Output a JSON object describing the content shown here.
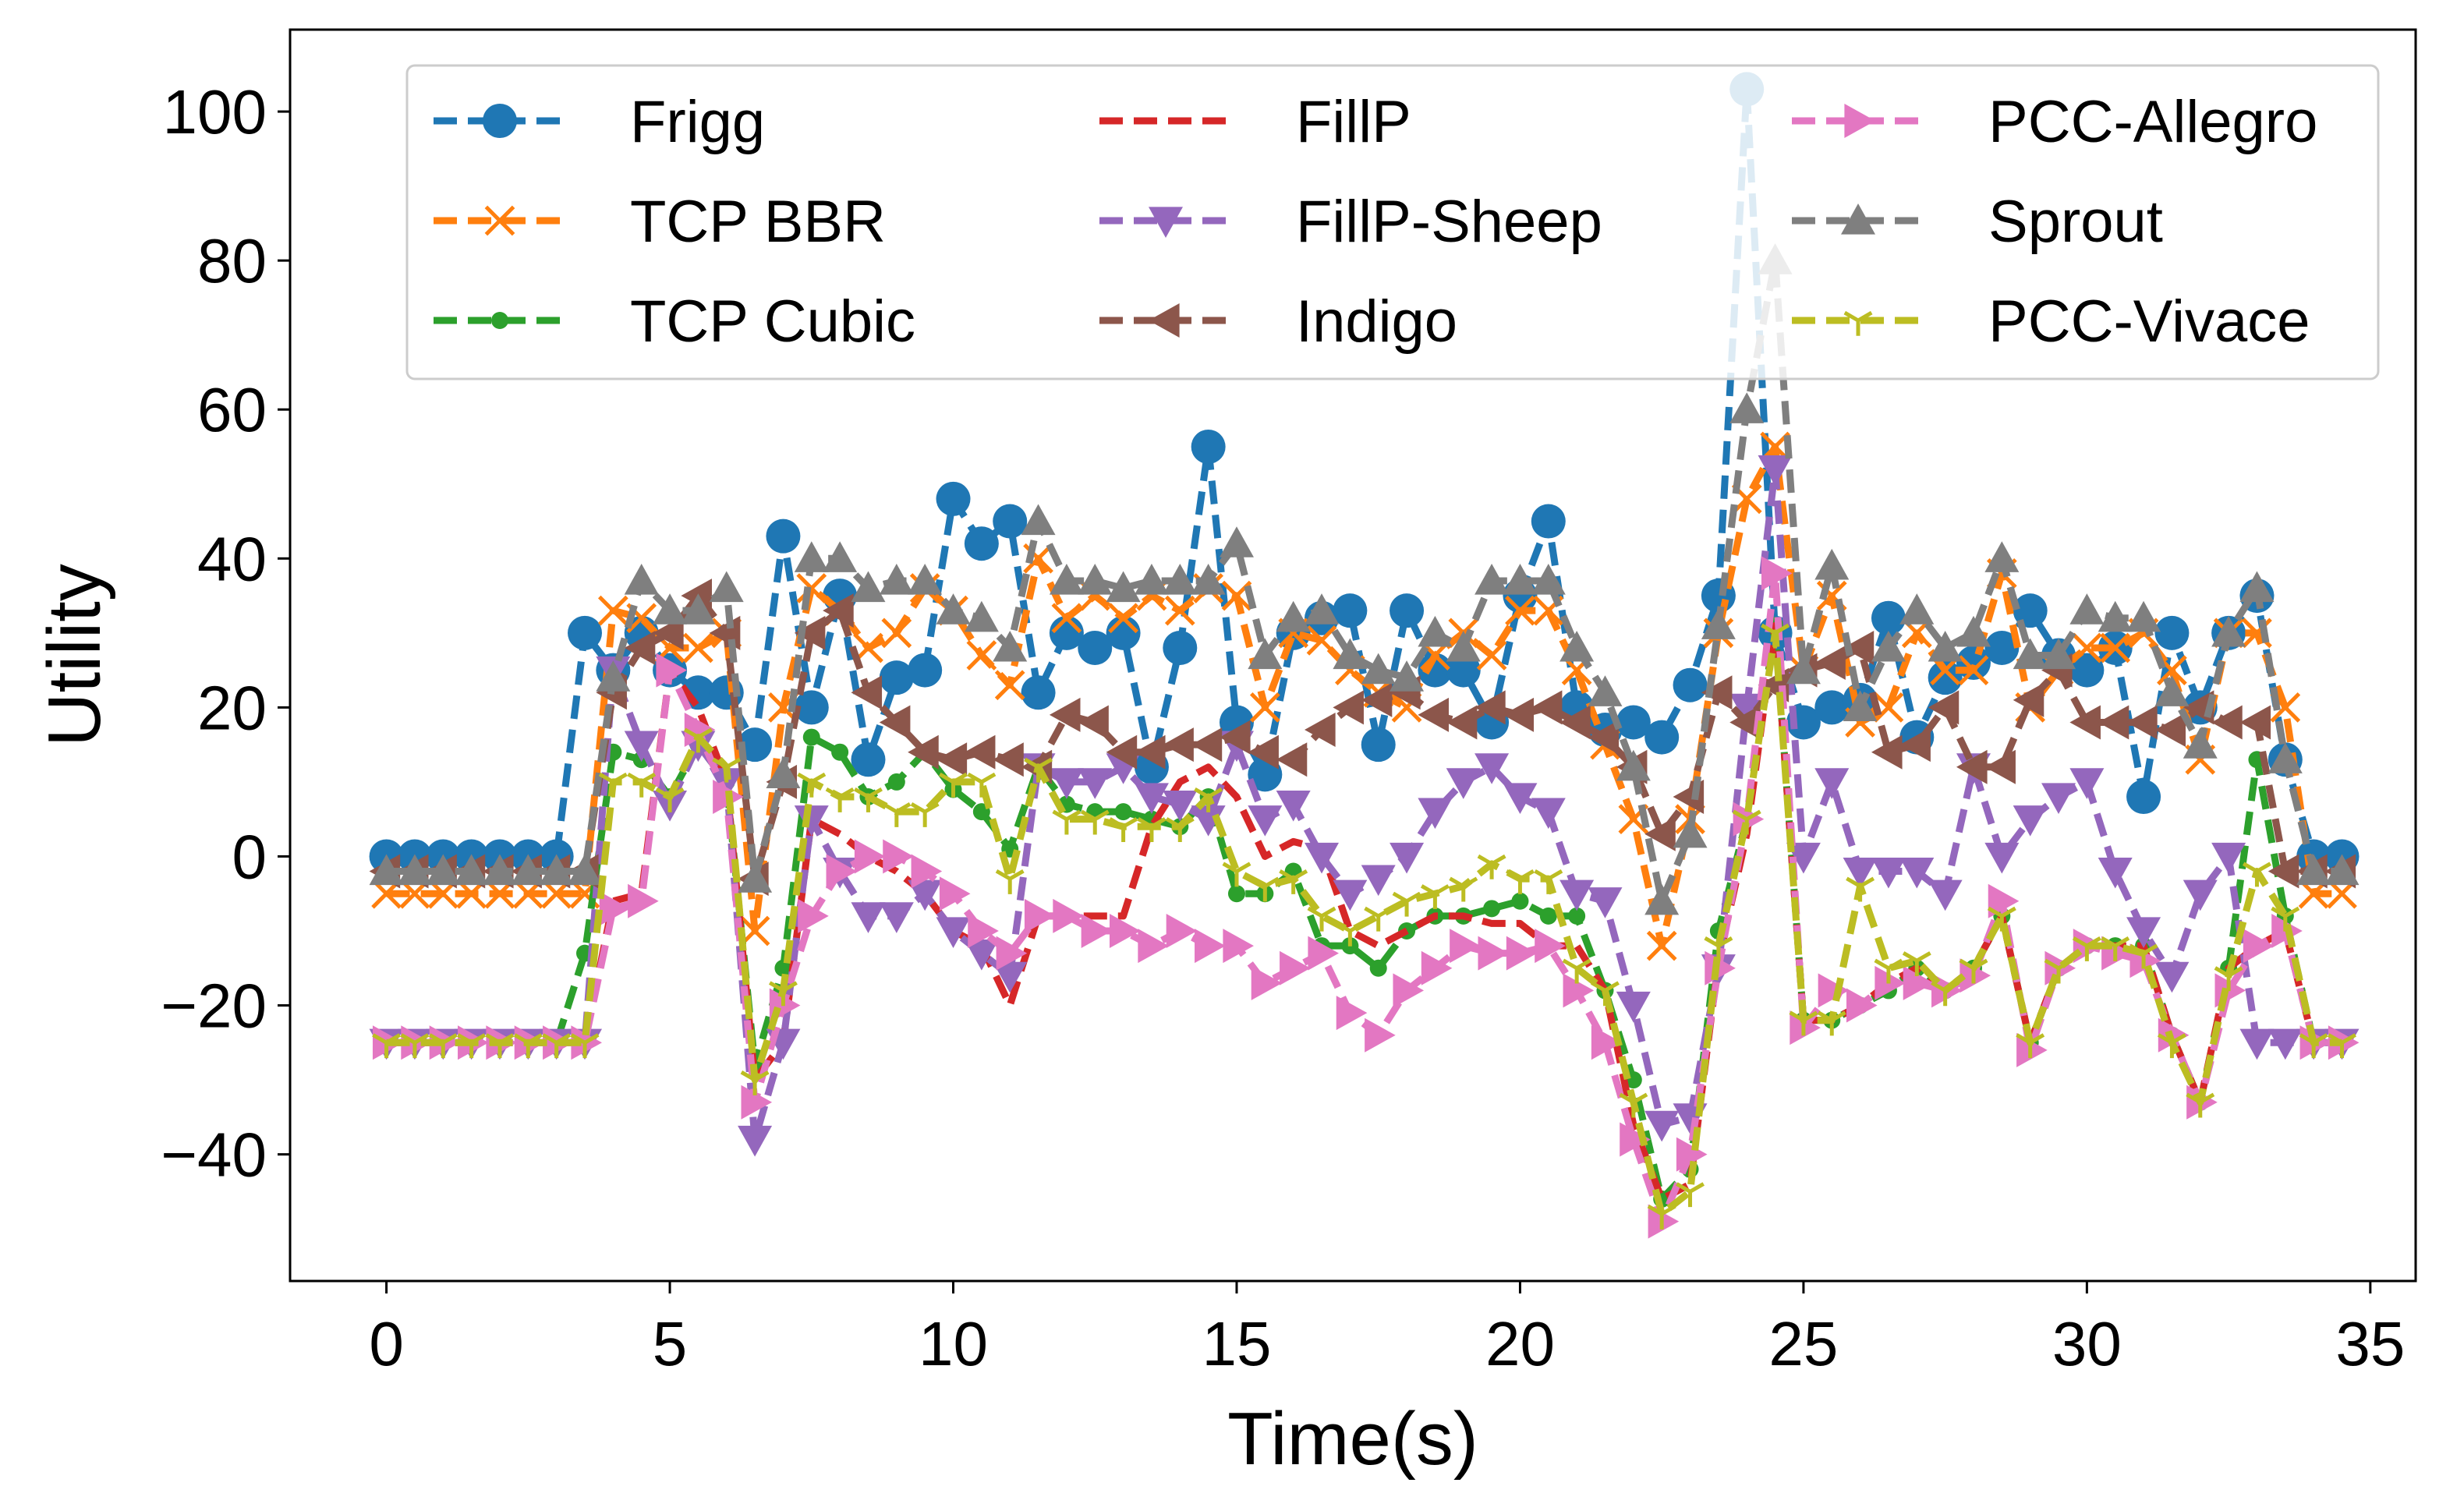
{
  "chart_data": {
    "type": "line",
    "title": "",
    "xlabel": "Time(s)",
    "ylabel": "Utility",
    "xlim": [
      -1.7,
      35.8
    ],
    "ylim": [
      -57,
      111
    ],
    "xticks": [
      0,
      5,
      10,
      15,
      20,
      25,
      30,
      35
    ],
    "yticks": [
      -40,
      -20,
      0,
      20,
      40,
      60,
      80,
      100
    ],
    "ytick_labels": [
      "−40",
      "−20",
      "0",
      "20",
      "40",
      "60",
      "80",
      "100"
    ],
    "grid": false,
    "legend_position": "top",
    "legend_columns": 3,
    "x": [
      0,
      0.5,
      1,
      1.5,
      2,
      2.5,
      3,
      3.5,
      4,
      4.5,
      5,
      5.5,
      6,
      6.5,
      7,
      7.5,
      8,
      8.5,
      9,
      9.5,
      10,
      10.5,
      11,
      11.5,
      12,
      12.5,
      13,
      13.5,
      14,
      14.5,
      15,
      15.5,
      16,
      16.5,
      17,
      17.5,
      18,
      18.5,
      19,
      19.5,
      20,
      20.5,
      21,
      21.5,
      22,
      22.5,
      23,
      23.5,
      24,
      24.5,
      25,
      25.5,
      26,
      26.5,
      27,
      27.5,
      28,
      28.5,
      29,
      29.5,
      30,
      30.5,
      31,
      31.5,
      32,
      32.5,
      33,
      33.5,
      34,
      34.5
    ],
    "series": [
      {
        "name": "Frigg",
        "color": "#1f77b4",
        "marker": "circle",
        "values": [
          0,
          0,
          0,
          0,
          0,
          0,
          0,
          30,
          25,
          30,
          25,
          22,
          22,
          15,
          43,
          20,
          35,
          13,
          24,
          25,
          48,
          42,
          45,
          22,
          30,
          28,
          30,
          12,
          28,
          55,
          18,
          11,
          30,
          32,
          33,
          15,
          33,
          25,
          25,
          18,
          35,
          45,
          20,
          17,
          18,
          16,
          23,
          35,
          103,
          30,
          18,
          20,
          21,
          32,
          16,
          24,
          26,
          28,
          33,
          27,
          25,
          28,
          8,
          30,
          20,
          30,
          35,
          13,
          0,
          0
        ]
      },
      {
        "name": "TCP BBR",
        "color": "#ff7f0e",
        "marker": "x",
        "values": [
          -5,
          -5,
          -5,
          -5,
          -5,
          -5,
          -5,
          -5,
          33,
          32,
          28,
          28,
          30,
          -10,
          20,
          36,
          33,
          28,
          30,
          36,
          33,
          27,
          23,
          40,
          32,
          35,
          32,
          35,
          33,
          36,
          35,
          20,
          30,
          29,
          25,
          22,
          20,
          27,
          30,
          27,
          33,
          33,
          25,
          15,
          5,
          -12,
          5,
          30,
          48,
          55,
          25,
          35,
          18,
          20,
          30,
          25,
          25,
          38,
          20,
          25,
          28,
          28,
          30,
          25,
          13,
          30,
          30,
          20,
          -5,
          -5
        ]
      },
      {
        "name": "TCP Cubic",
        "color": "#2ca02c",
        "marker": "point",
        "values": [
          -25,
          -25,
          -25,
          -25,
          -25,
          -25,
          -25,
          -13,
          14,
          13,
          8,
          15,
          10,
          -28,
          -15,
          16,
          14,
          8,
          10,
          14,
          9,
          6,
          1,
          12,
          7,
          6,
          6,
          5,
          4,
          8,
          -5,
          -5,
          -2,
          -12,
          -12,
          -15,
          -10,
          -8,
          -8,
          -7,
          -6,
          -8,
          -8,
          -18,
          -30,
          -46,
          -42,
          -10,
          5,
          31,
          -22,
          -22,
          -20,
          -18,
          -15,
          -18,
          -15,
          -8,
          -25,
          -15,
          -12,
          -12,
          -12,
          -24,
          -33,
          -15,
          13,
          -8,
          -25,
          -25
        ]
      },
      {
        "name": "FillP",
        "color": "#d62728",
        "marker": "none",
        "values": [
          -25,
          -25,
          -25,
          -25,
          -25,
          -25,
          -25,
          -25,
          -6,
          -5,
          25,
          20,
          10,
          -30,
          -25,
          5,
          3,
          0,
          -2,
          -5,
          -10,
          -12,
          -20,
          -8,
          -8,
          -8,
          -8,
          4,
          10,
          12,
          8,
          0,
          2,
          1,
          -10,
          -12,
          -10,
          -8,
          -8,
          -9,
          -9,
          -12,
          -12,
          -18,
          -36,
          -46,
          -44,
          -14,
          3,
          31,
          -22,
          -22,
          -20,
          -17,
          -15,
          -18,
          -15,
          -8,
          -25,
          -15,
          -12,
          -12,
          -12,
          -24,
          -33,
          -15,
          -12,
          -10,
          -25,
          -25
        ]
      },
      {
        "name": "FillP-Sheep",
        "color": "#9467bd",
        "marker": "triangle_down",
        "values": [
          -25,
          -25,
          -25,
          -25,
          -25,
          -25,
          -25,
          -25,
          25,
          15,
          7,
          15,
          10,
          -38,
          -25,
          5,
          -2,
          -8,
          -8,
          -5,
          -10,
          -13,
          -16,
          12,
          10,
          10,
          12,
          8,
          7,
          5,
          15,
          5,
          7,
          0,
          -5,
          -3,
          0,
          6,
          10,
          12,
          8,
          6,
          -5,
          -6,
          -20,
          -36,
          -35,
          -15,
          20,
          52,
          0,
          10,
          -2,
          -2,
          -2,
          -5,
          12,
          0,
          5,
          8,
          10,
          -2,
          -10,
          -16,
          -5,
          0,
          -25,
          -25,
          -25,
          -25
        ]
      },
      {
        "name": "Indigo",
        "color": "#8c564b",
        "marker": "triangle_left",
        "values": [
          -2,
          -2,
          -2,
          -2,
          -2,
          -2,
          -2,
          -2,
          22,
          28,
          30,
          35,
          30,
          -3,
          10,
          30,
          33,
          22,
          18,
          14,
          13,
          14,
          13,
          12,
          19,
          18,
          14,
          14,
          15,
          15,
          16,
          14,
          13,
          17,
          20,
          21,
          22,
          19,
          18,
          20,
          19,
          20,
          18,
          16,
          12,
          3,
          8,
          22,
          18,
          23,
          25,
          26,
          28,
          14,
          15,
          20,
          12,
          12,
          21,
          25,
          18,
          18,
          18,
          17,
          20,
          18,
          18,
          -2,
          -2,
          -2
        ]
      },
      {
        "name": "PCC-Allegro",
        "color": "#e377c2",
        "marker": "triangle_right",
        "values": [
          -25,
          -25,
          -25,
          -25,
          -25,
          -25,
          -25,
          -25,
          -7,
          -6,
          25,
          17,
          8,
          -33,
          -20,
          -8,
          -2,
          0,
          0,
          -2,
          -5,
          -10,
          -13,
          -8,
          -8,
          -10,
          -10,
          -12,
          -10,
          -12,
          -12,
          -17,
          -15,
          -13,
          -21,
          -24,
          -18,
          -15,
          -12,
          -13,
          -13,
          -12,
          -18,
          -25,
          -38,
          -49,
          -40,
          -15,
          5,
          38,
          -23,
          -18,
          -20,
          -17,
          -17,
          -18,
          -16,
          -6,
          -26,
          -15,
          -12,
          -13,
          -14,
          -24,
          -33,
          -18,
          -12,
          -10,
          -25,
          -25
        ]
      },
      {
        "name": "Sprout",
        "color": "#7f7f7f",
        "marker": "triangle_up",
        "values": [
          -2,
          -2,
          -2,
          -2,
          -2,
          -2,
          -2,
          -2,
          24,
          37,
          33,
          33,
          36,
          -3,
          11,
          40,
          40,
          36,
          37,
          37,
          33,
          32,
          28,
          45,
          37,
          37,
          36,
          37,
          37,
          37,
          42,
          27,
          32,
          33,
          27,
          25,
          24,
          30,
          28,
          37,
          37,
          37,
          28,
          22,
          12,
          -6,
          3,
          31,
          60,
          80,
          25,
          39,
          20,
          28,
          33,
          28,
          30,
          40,
          27,
          27,
          33,
          32,
          32,
          22,
          15,
          30,
          36,
          13,
          -2,
          -2
        ]
      },
      {
        "name": "PCC-Vivace",
        "color": "#bcbd22",
        "marker": "tri_down",
        "values": [
          -25,
          -25,
          -25,
          -25,
          -25,
          -25,
          -25,
          -25,
          10,
          10,
          8,
          16,
          12,
          -30,
          -18,
          10,
          8,
          8,
          6,
          6,
          10,
          10,
          -3,
          12,
          5,
          5,
          4,
          4,
          4,
          8,
          -2,
          -4,
          -3,
          -8,
          -10,
          -8,
          -6,
          -5,
          -4,
          -1,
          -3,
          -3,
          -15,
          -18,
          -33,
          -48,
          -45,
          -12,
          5,
          30,
          -22,
          -22,
          -4,
          -15,
          -14,
          -18,
          -15,
          -8,
          -25,
          -15,
          -12,
          -12,
          -13,
          -25,
          -33,
          -16,
          -2,
          -8,
          -25,
          -25
        ]
      }
    ]
  }
}
